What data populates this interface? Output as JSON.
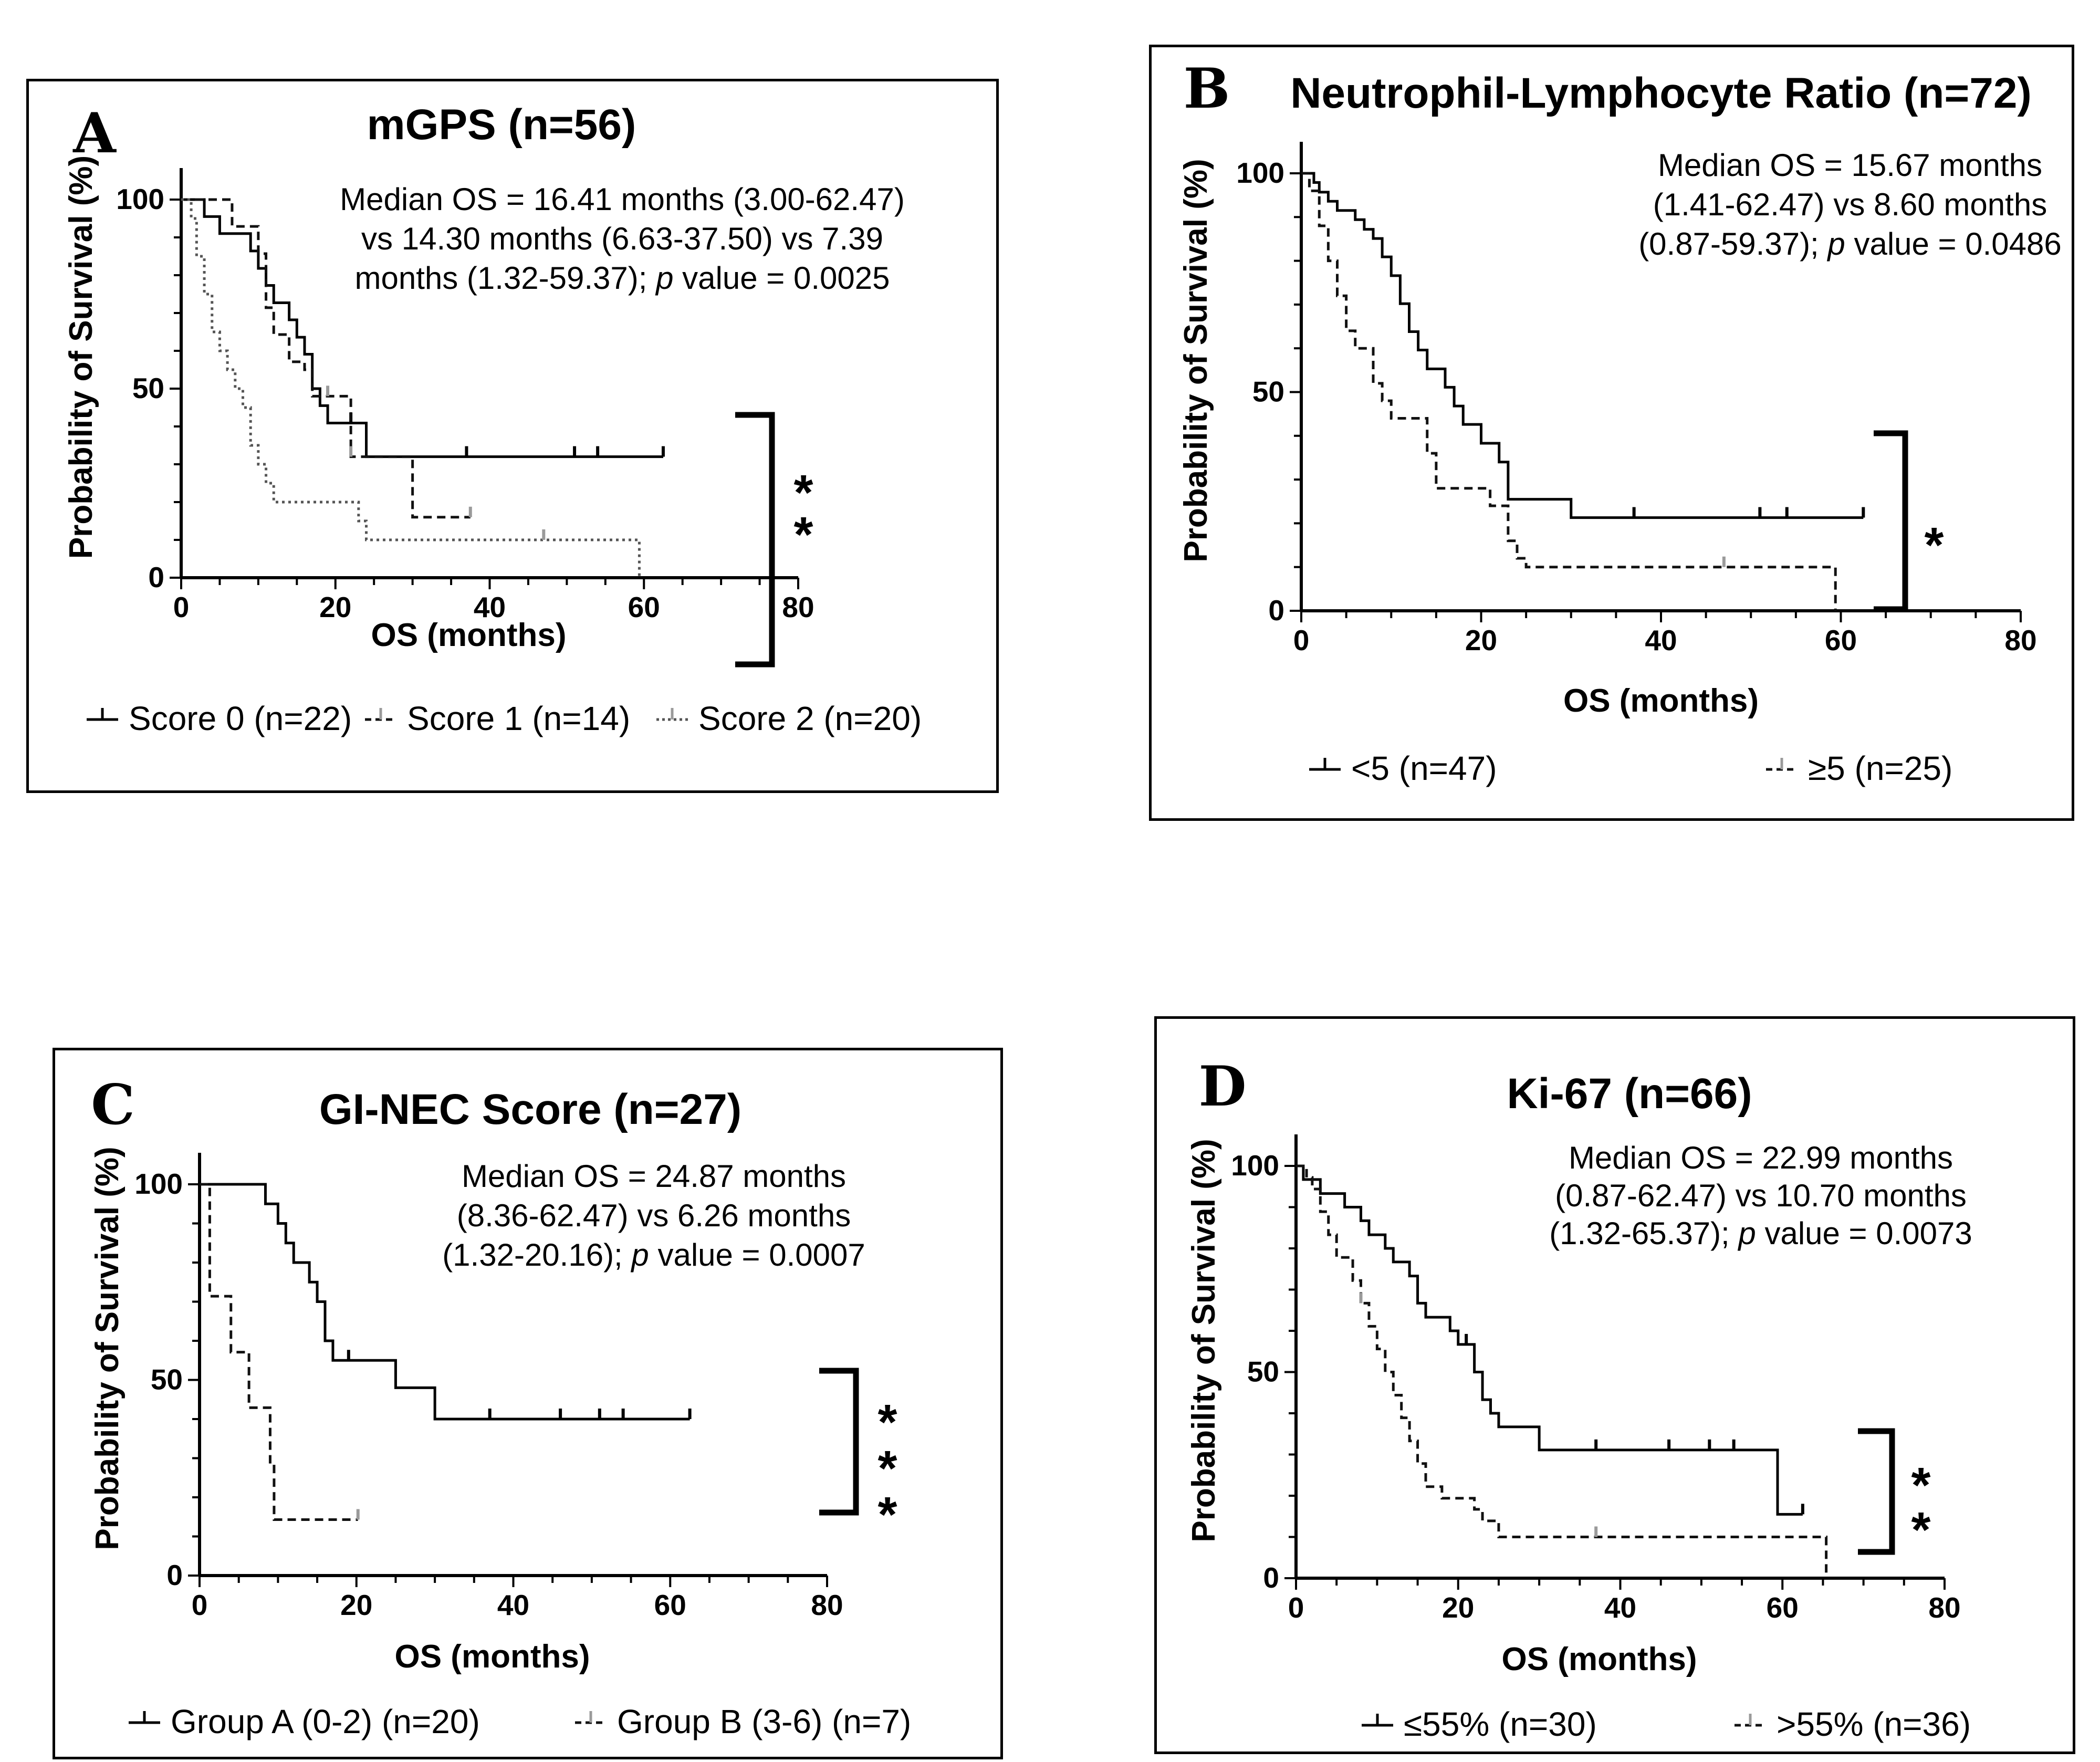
{
  "figure": {
    "colors": {
      "axis": "#000000",
      "series_solid": "#000000",
      "series_dashed": "#111111",
      "series_dotted": "#555555",
      "censor_gray": "#9a9a9a"
    }
  },
  "chart_data": [
    {
      "id": "A",
      "type": "line",
      "letter": "A",
      "title": "mGPS (n=56)",
      "median_lines": [
        "Median OS = 16.41 months (3.00-62.47)",
        "vs 14.30 months (6.63-37.50) vs 7.39",
        "months (1.32-59.37); p value = 0.0025"
      ],
      "xlabel": "OS (months)",
      "ylabel": "Probability of Survival (%)",
      "xlim": [
        0,
        80
      ],
      "ylim": [
        0,
        100
      ],
      "xticks": [
        0,
        20,
        40,
        60,
        80
      ],
      "yticks": [
        0,
        50,
        100
      ],
      "significance": "**",
      "series": [
        {
          "name": "Score 0 (n=22)",
          "style": "solid",
          "steps": [
            [
              0,
              100
            ],
            [
              3,
              95.5
            ],
            [
              5,
              91
            ],
            [
              9,
              86.4
            ],
            [
              10,
              81.8
            ],
            [
              11,
              77.3
            ],
            [
              12,
              72.7
            ],
            [
              14,
              68.2
            ],
            [
              15,
              63.6
            ],
            [
              16,
              59.1
            ],
            [
              17,
              50
            ],
            [
              18,
              45.5
            ],
            [
              19,
              40.9
            ],
            [
              24,
              32
            ]
          ],
          "end": 62.5,
          "censors": [
            22,
            37,
            51,
            54,
            62.5
          ]
        },
        {
          "name": "Score 1 (n=14)",
          "style": "dashed",
          "steps": [
            [
              0,
              100
            ],
            [
              6.6,
              92.9
            ],
            [
              10,
              85.7
            ],
            [
              11,
              71.4
            ],
            [
              12,
              64.3
            ],
            [
              14,
              57.1
            ],
            [
              16,
              55
            ],
            [
              17,
              48
            ],
            [
              22,
              32
            ],
            [
              30,
              16
            ]
          ],
          "end": 37.5,
          "censors": [
            19,
            22,
            37.5
          ]
        },
        {
          "name": "Score 2 (n=20)",
          "style": "dotted",
          "steps": [
            [
              0,
              100
            ],
            [
              1.3,
              95
            ],
            [
              2,
              85
            ],
            [
              3,
              75
            ],
            [
              4,
              65
            ],
            [
              5,
              60
            ],
            [
              6,
              55
            ],
            [
              7,
              50
            ],
            [
              8,
              45
            ],
            [
              9,
              35
            ],
            [
              10,
              30
            ],
            [
              11,
              25
            ],
            [
              12,
              20
            ],
            [
              23,
              15
            ],
            [
              24,
              10
            ],
            [
              59.4,
              0
            ]
          ],
          "end": 59.4,
          "censors": [
            47
          ]
        }
      ]
    },
    {
      "id": "B",
      "type": "line",
      "letter": "B",
      "title": "Neutrophil-Lymphocyte Ratio (n=72)",
      "median_lines": [
        "Median OS = 15.67 months",
        "(1.41-62.47) vs 8.60 months",
        "(0.87-59.37); p value = 0.0486"
      ],
      "xlabel": "OS (months)",
      "ylabel": "Probability of Survival (%)",
      "xlim": [
        0,
        80
      ],
      "ylim": [
        0,
        100
      ],
      "xticks": [
        0,
        20,
        40,
        60,
        80
      ],
      "yticks": [
        0,
        50,
        100
      ],
      "significance": "*",
      "series": [
        {
          "name": "<5 (n=47)",
          "style": "solid",
          "steps": [
            [
              0,
              100
            ],
            [
              1.4,
              97.9
            ],
            [
              2,
              95.7
            ],
            [
              3,
              93.6
            ],
            [
              4,
              91.5
            ],
            [
              6,
              89.4
            ],
            [
              7,
              87.2
            ],
            [
              8,
              85.1
            ],
            [
              9,
              80.9
            ],
            [
              10,
              76.6
            ],
            [
              11,
              70.2
            ],
            [
              12,
              63.8
            ],
            [
              13,
              59.6
            ],
            [
              14,
              55.3
            ],
            [
              16,
              51.1
            ],
            [
              17,
              46.8
            ],
            [
              18,
              42.6
            ],
            [
              20,
              38.3
            ],
            [
              22,
              34
            ],
            [
              23,
              25.5
            ],
            [
              30,
              21.3
            ]
          ],
          "end": 62.5,
          "censors": [
            37,
            51,
            54,
            62.5
          ]
        },
        {
          "name": "≥5 (n=25)",
          "style": "dashed",
          "steps": [
            [
              0,
              100
            ],
            [
              0.9,
              96
            ],
            [
              2,
              88
            ],
            [
              3,
              80
            ],
            [
              4,
              72
            ],
            [
              5,
              64
            ],
            [
              6,
              60
            ],
            [
              8,
              52
            ],
            [
              9,
              48
            ],
            [
              10,
              44
            ],
            [
              14,
              36
            ],
            [
              15,
              28
            ],
            [
              21,
              24
            ],
            [
              23,
              16
            ],
            [
              24,
              12
            ],
            [
              25,
              10
            ],
            [
              59.4,
              0
            ]
          ],
          "end": 59.4,
          "censors": [
            47
          ]
        }
      ]
    },
    {
      "id": "C",
      "type": "line",
      "letter": "C",
      "title": "GI-NEC Score (n=27)",
      "median_lines": [
        "Median OS = 24.87 months",
        "(8.36-62.47) vs 6.26 months",
        "(1.32-20.16); p value = 0.0007"
      ],
      "xlabel": "OS (months)",
      "ylabel": "Probability of Survival (%)",
      "xlim": [
        0,
        80
      ],
      "ylim": [
        0,
        100
      ],
      "xticks": [
        0,
        20,
        40,
        60,
        80
      ],
      "yticks": [
        0,
        50,
        100
      ],
      "significance": "***",
      "series": [
        {
          "name": "Group A (0-2) (n=20)",
          "style": "solid",
          "steps": [
            [
              0,
              100
            ],
            [
              8.4,
              95
            ],
            [
              10,
              90
            ],
            [
              11,
              85
            ],
            [
              12,
              80
            ],
            [
              14,
              75
            ],
            [
              15,
              70
            ],
            [
              16,
              60
            ],
            [
              17,
              55
            ],
            [
              25,
              48
            ],
            [
              30,
              40
            ]
          ],
          "end": 62.5,
          "censors": [
            19,
            37,
            46,
            51,
            54,
            62.5
          ]
        },
        {
          "name": "Group B (3-6) (n=7)",
          "style": "dashed",
          "steps": [
            [
              0,
              100
            ],
            [
              1.3,
              71.4
            ],
            [
              4,
              57.1
            ],
            [
              6.3,
              42.9
            ],
            [
              9,
              28.6
            ],
            [
              9.5,
              14.3
            ]
          ],
          "end": 20.2,
          "censors": [
            20.2
          ]
        }
      ]
    },
    {
      "id": "D",
      "type": "line",
      "letter": "D",
      "title": "Ki-67 (n=66)",
      "median_lines": [
        "Median OS = 22.99 months",
        "(0.87-62.47) vs 10.70 months",
        "(1.32-65.37); p value = 0.0073"
      ],
      "xlabel": "OS (months)",
      "ylabel": "Probability of Survival (%)",
      "xlim": [
        0,
        80
      ],
      "ylim": [
        0,
        100
      ],
      "xticks": [
        0,
        20,
        40,
        60,
        80
      ],
      "yticks": [
        0,
        50,
        100
      ],
      "significance": "**",
      "series": [
        {
          "name": "≤55% (n=30)",
          "style": "solid",
          "steps": [
            [
              0,
              100
            ],
            [
              0.9,
              96.7
            ],
            [
              3,
              93.3
            ],
            [
              6,
              90
            ],
            [
              8,
              86.7
            ],
            [
              9,
              83.3
            ],
            [
              11,
              80
            ],
            [
              12,
              76.7
            ],
            [
              14,
              73.3
            ],
            [
              15,
              66.7
            ],
            [
              16,
              63.3
            ],
            [
              19,
              60
            ],
            [
              20,
              56.7
            ],
            [
              22,
              50
            ],
            [
              23,
              43.3
            ],
            [
              24,
              40
            ],
            [
              25,
              36.7
            ],
            [
              30,
              31.1
            ],
            [
              59.4,
              15.5
            ]
          ],
          "end": 62.5,
          "censors": [
            21,
            37,
            46,
            51,
            54,
            62.5
          ]
        },
        {
          "name": ">55% (n=36)",
          "style": "dashed",
          "steps": [
            [
              0,
              100
            ],
            [
              1.3,
              97.2
            ],
            [
              2,
              94.4
            ],
            [
              3,
              88.9
            ],
            [
              4,
              83.3
            ],
            [
              5,
              77.8
            ],
            [
              7,
              72.2
            ],
            [
              8,
              66.7
            ],
            [
              9,
              61.1
            ],
            [
              10,
              55.6
            ],
            [
              11,
              50
            ],
            [
              12,
              44.4
            ],
            [
              13,
              38.9
            ],
            [
              14,
              33.3
            ],
            [
              15,
              27.8
            ],
            [
              16,
              22.2
            ],
            [
              18,
              19.4
            ],
            [
              22,
              16.7
            ],
            [
              23,
              13.9
            ],
            [
              25,
              10
            ],
            [
              65.4,
              0
            ]
          ],
          "end": 65.4,
          "censors": [
            8,
            37
          ]
        }
      ]
    }
  ]
}
